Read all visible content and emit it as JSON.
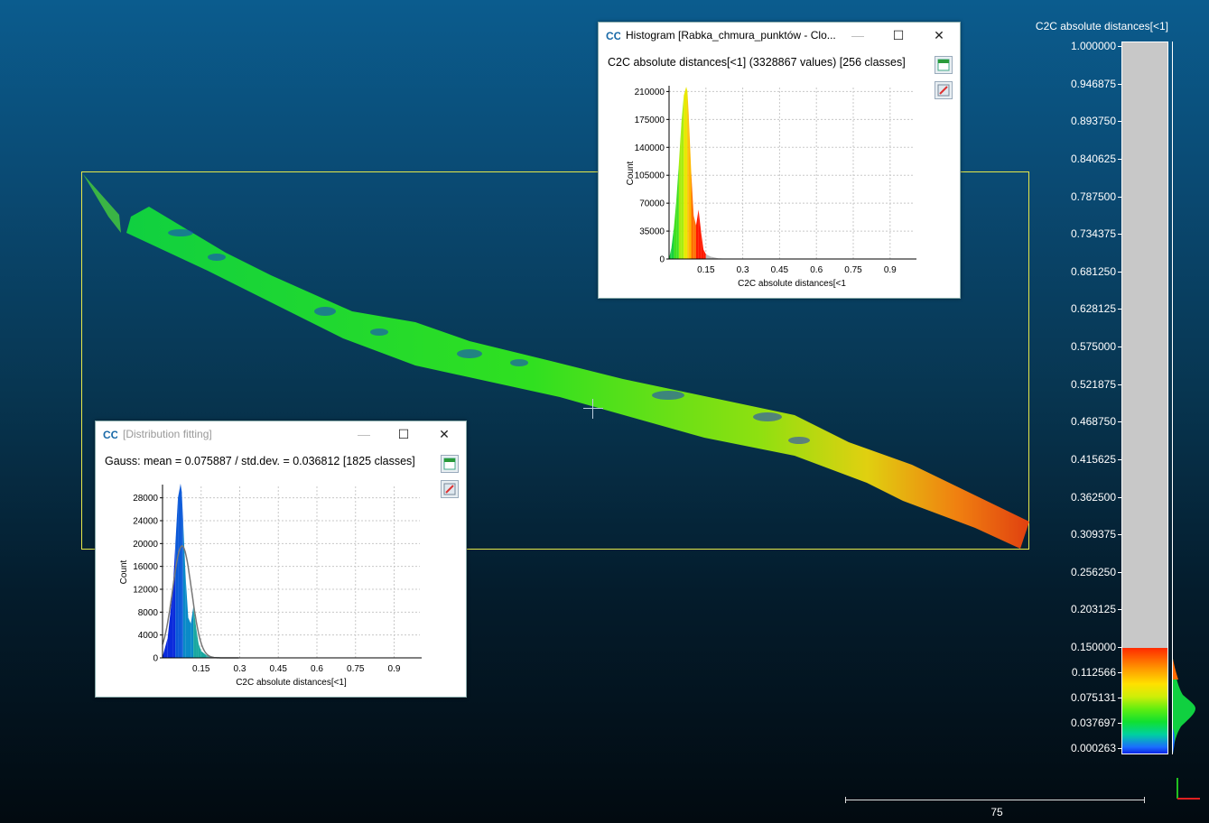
{
  "histogram_window": {
    "title": "Histogram [Rabka_chmura_punktów - Clo...",
    "header": "C2C absolute distances[<1] (3328867 values)  [256 classes]",
    "minimize": "—",
    "maximize": "☐",
    "close": "✕",
    "export_csv_icon": "csv-export-icon",
    "export_image_icon": "image-export-icon",
    "chart": {
      "ylabel": "Count",
      "xlabel": "C2C absolute distances[<1",
      "y_ticks": [
        "0",
        "35000",
        "70000",
        "105000",
        "140000",
        "175000",
        "210000"
      ],
      "x_ticks": [
        "0.15",
        "0.3",
        "0.45",
        "0.6",
        "0.75",
        "0.9"
      ]
    }
  },
  "distribution_window": {
    "title": "[Distribution fitting]",
    "header": "Gauss: mean = 0.075887 / std.dev. = 0.036812 [1825 classes]",
    "minimize": "—",
    "maximize": "☐",
    "close": "✕",
    "export_csv_icon": "csv-export-icon",
    "export_image_icon": "image-export-icon",
    "chart": {
      "ylabel": "Count",
      "xlabel": "C2C absolute distances[<1]",
      "y_ticks": [
        "0",
        "4000",
        "8000",
        "12000",
        "16000",
        "20000",
        "24000",
        "28000"
      ],
      "x_ticks": [
        "0.15",
        "0.3",
        "0.45",
        "0.6",
        "0.75",
        "0.9"
      ]
    }
  },
  "scalar_bar": {
    "title": "C2C absolute distances[<1]",
    "ticks": [
      "1.000000",
      "0.946875",
      "0.893750",
      "0.840625",
      "0.787500",
      "0.734375",
      "0.681250",
      "0.628125",
      "0.575000",
      "0.521875",
      "0.468750",
      "0.415625",
      "0.362500",
      "0.309375",
      "0.256250",
      "0.203125",
      "0.150000",
      "0.112566",
      "0.075131",
      "0.037697",
      "0.000263"
    ],
    "colors": {
      "low": "#0b24e6",
      "mid": "#10e030",
      "high": "#ff2a00",
      "out_of_range": "#c8c8c8"
    }
  },
  "scale_ruler": {
    "label": "75"
  },
  "chart_data": [
    {
      "type": "bar",
      "title": "C2C absolute distances[<1] (3328867 values)  [256 classes]",
      "xlabel": "C2C absolute distances[<1",
      "ylabel": "Count",
      "xlim": [
        0,
        1
      ],
      "ylim": [
        0,
        215000
      ],
      "grid": true,
      "x": [
        0.0,
        0.01,
        0.02,
        0.03,
        0.04,
        0.05,
        0.06,
        0.07,
        0.075,
        0.08,
        0.09,
        0.1,
        0.11,
        0.12,
        0.13,
        0.14,
        0.15,
        0.17,
        0.2,
        0.25
      ],
      "values": [
        500,
        15000,
        40000,
        75000,
        120000,
        170000,
        205000,
        216000,
        210000,
        180000,
        110000,
        55000,
        42000,
        62000,
        35000,
        12000,
        6000,
        3000,
        800,
        100
      ]
    },
    {
      "type": "area",
      "title": "Gauss: mean = 0.075887 / std.dev. = 0.036812 [1825 classes]",
      "xlabel": "C2C absolute distances[<1]",
      "ylabel": "Count",
      "xlim": [
        0,
        1
      ],
      "ylim": [
        0,
        30000
      ],
      "grid": true,
      "x": [
        0.0,
        0.02,
        0.04,
        0.05,
        0.06,
        0.07,
        0.075,
        0.08,
        0.09,
        0.1,
        0.11,
        0.12,
        0.13,
        0.14,
        0.15,
        0.17,
        0.2,
        0.25
      ],
      "values": [
        200,
        3500,
        12000,
        20000,
        28000,
        30500,
        29000,
        24000,
        14000,
        7000,
        6000,
        9000,
        5500,
        2500,
        1200,
        500,
        150,
        20
      ],
      "gauss_mean": 0.075887,
      "gauss_std": 0.036812,
      "gauss_peak": 19600
    }
  ]
}
